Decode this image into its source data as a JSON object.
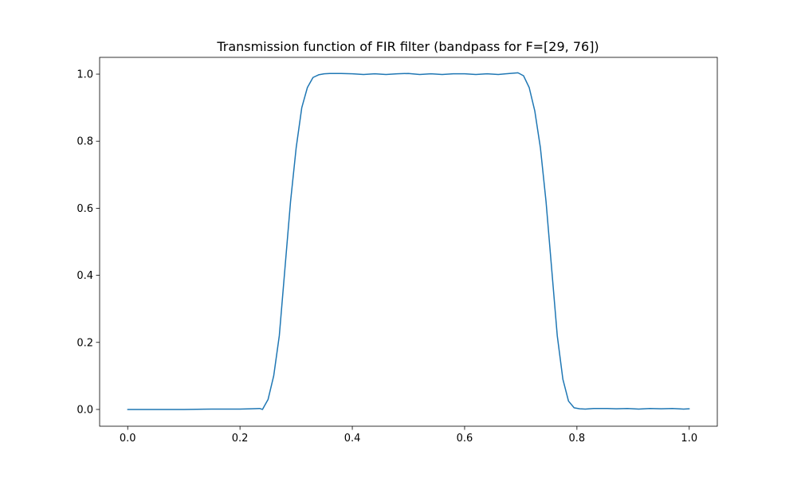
{
  "chart_data": {
    "type": "line",
    "title": "Transmission function of FIR filter (bandpass for F=[29, 76])",
    "xlabel": "",
    "ylabel": "",
    "xlim": [
      -0.05,
      1.05
    ],
    "ylim": [
      -0.05,
      1.05
    ],
    "grid": false,
    "x_ticks": [
      0.0,
      0.2,
      0.4,
      0.6,
      0.8,
      1.0
    ],
    "x_tick_labels": [
      "0.0",
      "0.2",
      "0.4",
      "0.6",
      "0.8",
      "1.0"
    ],
    "y_ticks": [
      0.0,
      0.2,
      0.4,
      0.6,
      0.8,
      1.0
    ],
    "y_tick_labels": [
      "0.0",
      "0.2",
      "0.4",
      "0.6",
      "0.8",
      "1.0"
    ],
    "series": [
      {
        "color": "#1f77b4",
        "x": [
          0.0,
          0.05,
          0.1,
          0.15,
          0.2,
          0.22,
          0.235,
          0.24,
          0.25,
          0.26,
          0.27,
          0.28,
          0.29,
          0.3,
          0.31,
          0.32,
          0.33,
          0.34,
          0.35,
          0.36,
          0.38,
          0.4,
          0.42,
          0.44,
          0.46,
          0.48,
          0.5,
          0.52,
          0.54,
          0.56,
          0.58,
          0.6,
          0.62,
          0.64,
          0.66,
          0.68,
          0.695,
          0.705,
          0.715,
          0.725,
          0.735,
          0.745,
          0.755,
          0.765,
          0.775,
          0.785,
          0.795,
          0.805,
          0.815,
          0.83,
          0.85,
          0.87,
          0.89,
          0.91,
          0.93,
          0.95,
          0.97,
          0.99,
          1.0
        ],
        "y": [
          0.0,
          0.0,
          0.0,
          0.001,
          0.001,
          0.002,
          0.003,
          0.0,
          0.03,
          0.1,
          0.22,
          0.42,
          0.62,
          0.78,
          0.9,
          0.96,
          0.99,
          0.998,
          1.001,
          1.002,
          1.002,
          1.001,
          0.999,
          1.001,
          0.999,
          1.001,
          1.002,
          0.999,
          1.001,
          0.999,
          1.001,
          1.001,
          0.999,
          1.001,
          0.999,
          1.002,
          1.004,
          0.995,
          0.96,
          0.89,
          0.78,
          0.62,
          0.42,
          0.22,
          0.09,
          0.025,
          0.005,
          0.002,
          0.001,
          0.003,
          0.003,
          0.002,
          0.003,
          0.001,
          0.003,
          0.002,
          0.003,
          0.001,
          0.002
        ]
      }
    ]
  }
}
